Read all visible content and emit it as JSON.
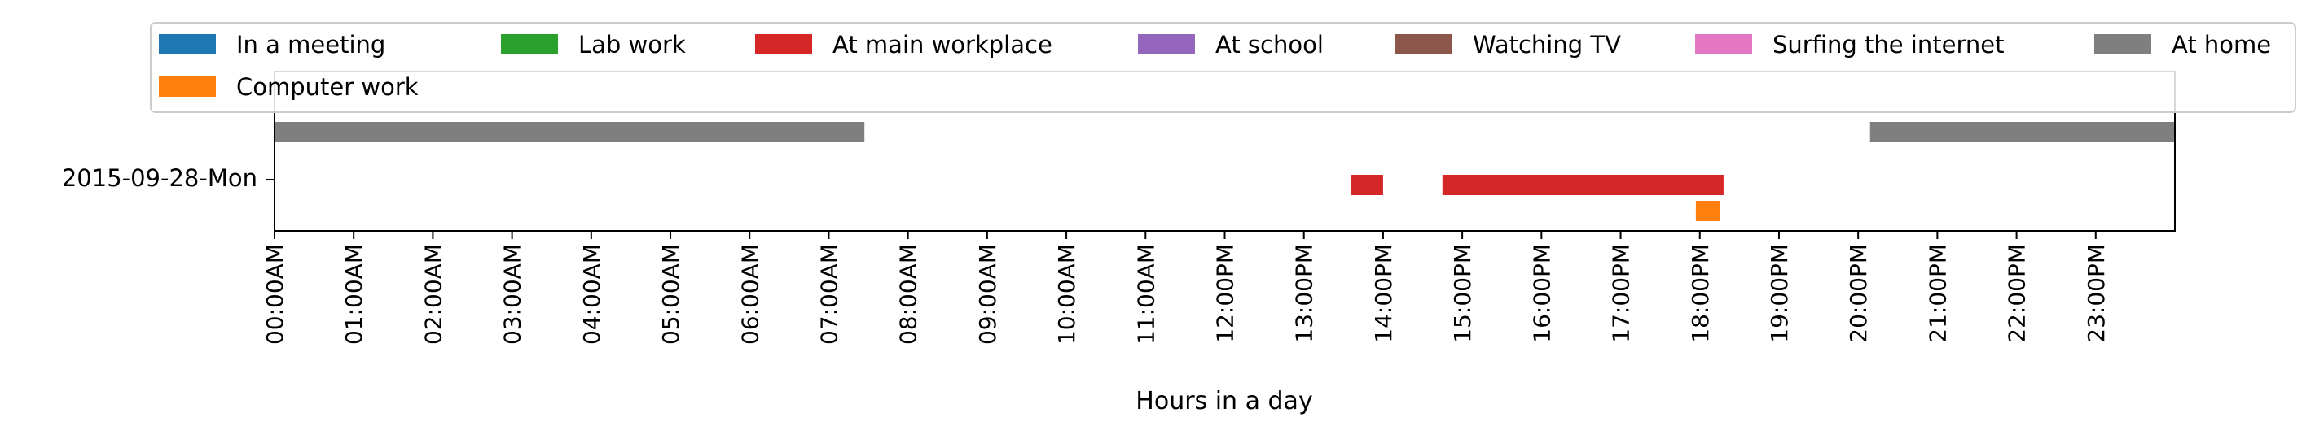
{
  "chart_data": {
    "type": "timeline",
    "title": "",
    "xlabel": "Hours in a day",
    "ylabel": "",
    "x_unit": "hours",
    "xlim": [
      0,
      24
    ],
    "x_ticks": [
      0,
      1,
      2,
      3,
      4,
      5,
      6,
      7,
      8,
      9,
      10,
      11,
      12,
      13,
      14,
      15,
      16,
      17,
      18,
      19,
      20,
      21,
      22,
      23
    ],
    "x_tick_labels": [
      "00:00AM",
      "01:00AM",
      "02:00AM",
      "03:00AM",
      "04:00AM",
      "05:00AM",
      "06:00AM",
      "07:00AM",
      "08:00AM",
      "09:00AM",
      "10:00AM",
      "11:00AM",
      "12:00PM",
      "13:00PM",
      "14:00PM",
      "15:00PM",
      "16:00PM",
      "17:00PM",
      "18:00PM",
      "19:00PM",
      "20:00PM",
      "21:00PM",
      "22:00PM",
      "23:00PM"
    ],
    "row_label": "2015-09-28-Mon",
    "grid": false,
    "legend_position": "top",
    "legend": [
      {
        "name": "In a meeting",
        "color": "#1f77b4"
      },
      {
        "name": "Lab work",
        "color": "#2ca02c"
      },
      {
        "name": "At main workplace",
        "color": "#d62728"
      },
      {
        "name": "At school",
        "color": "#9467bd"
      },
      {
        "name": "Watching TV",
        "color": "#8c564b"
      },
      {
        "name": "Surfing the internet",
        "color": "#e377c2"
      },
      {
        "name": "At home",
        "color": "#7f7f7f"
      },
      {
        "name": "Computer work",
        "color": "#ff7f0e"
      }
    ],
    "bars": [
      {
        "activity": "At home",
        "lane": "upper",
        "start": 0.0,
        "end": 7.45
      },
      {
        "activity": "At home",
        "lane": "upper",
        "start": 20.15,
        "end": 24.0
      },
      {
        "activity": "At main workplace",
        "lane": "middle",
        "start": 13.6,
        "end": 14.0
      },
      {
        "activity": "At main workplace",
        "lane": "middle",
        "start": 14.75,
        "end": 18.3
      },
      {
        "activity": "Computer work",
        "lane": "lower",
        "start": 17.95,
        "end": 18.25
      }
    ]
  }
}
